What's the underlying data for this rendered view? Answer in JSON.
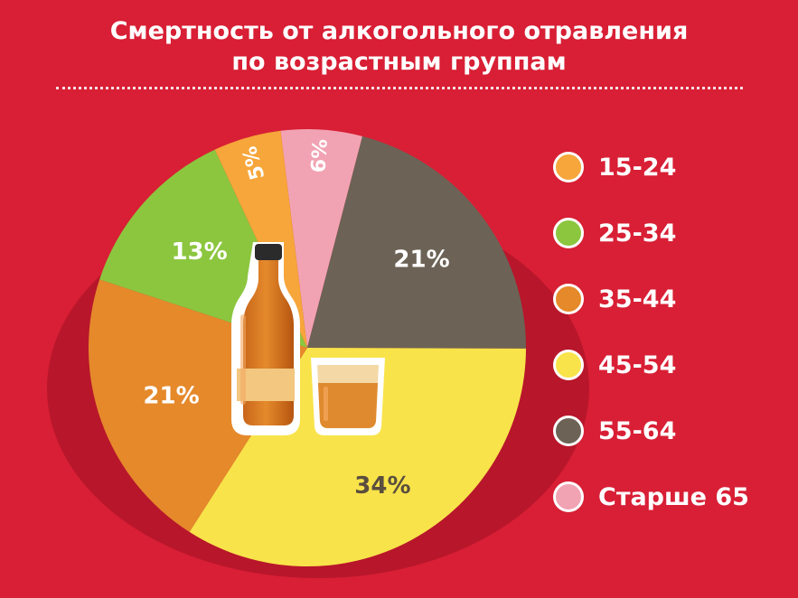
{
  "title_line1": "Смертность от алкогольного отравления",
  "title_line2": "по возрастным группам",
  "chart_data": {
    "type": "pie",
    "title": "Смертность от алкогольного отравления по возрастным группам",
    "categories": [
      "15-24",
      "25-34",
      "35-44",
      "45-54",
      "55-64",
      "Старше 65"
    ],
    "values": [
      5,
      13,
      21,
      34,
      21,
      6
    ],
    "labels": [
      "5%",
      "13%",
      "21%",
      "34%",
      "21%",
      "6%"
    ],
    "colors": [
      "#f6a63a",
      "#8cc63f",
      "#e5892b",
      "#f8e34a",
      "#6c6356",
      "#f2a3b3"
    ],
    "legend_position": "right"
  },
  "icons": [
    "bottle-icon",
    "glass-icon"
  ]
}
